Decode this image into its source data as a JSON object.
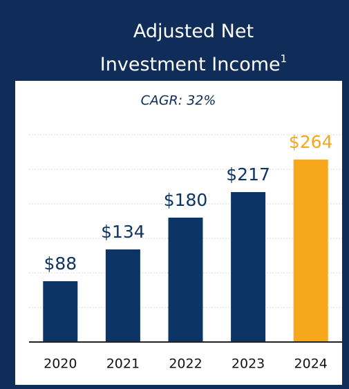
{
  "chart_data": {
    "type": "bar",
    "title": "Adjusted Net Investment Income",
    "title_footnote": "1",
    "subtitle": "CAGR: 32%",
    "categories": [
      "2020",
      "2021",
      "2022",
      "2023",
      "2024"
    ],
    "values": [
      88,
      134,
      180,
      217,
      264
    ],
    "value_labels": [
      "$88",
      "$134",
      "$180",
      "$217",
      "$264"
    ],
    "colors": [
      "#0c3566",
      "#0c3566",
      "#0c3566",
      "#0c3566",
      "#f7a71b"
    ],
    "ylim": [
      0,
      310
    ],
    "yticks": [
      50,
      100,
      150,
      200,
      250,
      300
    ],
    "grid": true
  }
}
